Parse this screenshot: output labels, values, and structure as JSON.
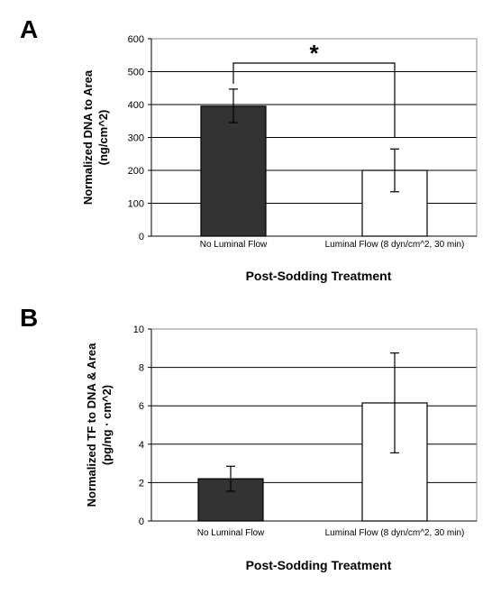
{
  "chart_data": [
    {
      "type": "bar",
      "panel": "A",
      "categories": [
        "No Luminal Flow",
        "Luminal Flow (8 dyn/cm^2, 30 min)"
      ],
      "values": [
        395,
        200
      ],
      "error_low": [
        345,
        135
      ],
      "error_high": [
        447,
        265
      ],
      "ylim": [
        0,
        600
      ],
      "yticks": [
        0,
        100,
        200,
        300,
        400,
        500,
        600
      ],
      "ylabel_line1": "Normalized DNA to Area",
      "ylabel_line2": "(ng/cm^2)",
      "xlabel": "Post-Sodding Treatment",
      "grid": true,
      "bar_colors": [
        "#333333",
        "#ffffff"
      ],
      "significance": "*"
    },
    {
      "type": "bar",
      "panel": "B",
      "categories": [
        "No Luminal Flow",
        "Luminal Flow (8 dyn/cm^2, 30 min)"
      ],
      "values": [
        2.2,
        6.15
      ],
      "error_low": [
        1.55,
        3.55
      ],
      "error_high": [
        2.85,
        8.75
      ],
      "ylim": [
        0,
        10
      ],
      "yticks": [
        0,
        2,
        4,
        6,
        8,
        10
      ],
      "ylabel_line1": "Normalized TF to DNA & Area",
      "ylabel_line2": "(pg/ng · cm^2)",
      "xlabel": "Post-Sodding Treatment",
      "grid": true,
      "bar_colors": [
        "#333333",
        "#ffffff"
      ]
    }
  ]
}
